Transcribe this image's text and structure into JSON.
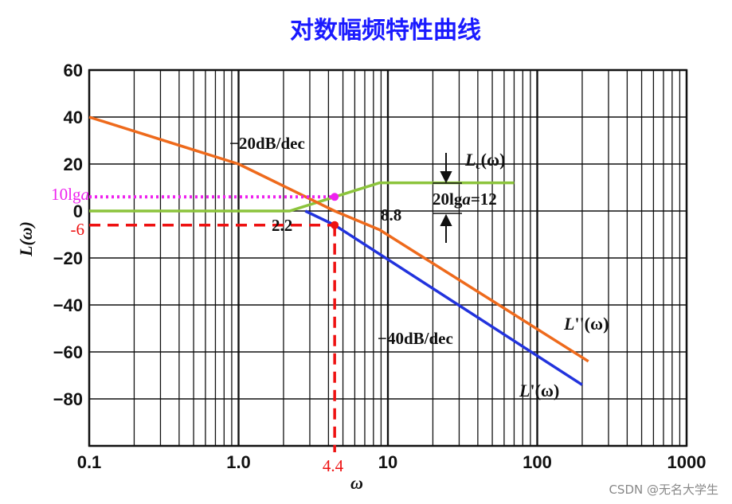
{
  "title": "对数幅频特性曲线",
  "watermark": "CSDN @无名大学生",
  "colors": {
    "title": "#1a1aff",
    "grid": "#111111",
    "L_double_prime": "#ee6a1c",
    "L_prime": "#2233dd",
    "Lc": "#8cc43c",
    "magenta_marker": "#ee22ee",
    "red_marker": "#ee1111"
  },
  "chart_data": {
    "type": "line",
    "title": "对数幅频特性曲线",
    "xlabel": "ω",
    "ylabel": "L(ω)",
    "xscale": "log",
    "xlim": [
      0.1,
      1000
    ],
    "ylim": [
      -100,
      60
    ],
    "grid": true,
    "xticks": [
      {
        "value": 0.1,
        "label": "0.1"
      },
      {
        "value": 1,
        "label": "1.0"
      },
      {
        "value": 10,
        "label": "10"
      },
      {
        "value": 100,
        "label": "100"
      },
      {
        "value": 1000,
        "label": "1000"
      }
    ],
    "yticks": [
      {
        "value": 60,
        "label": "60"
      },
      {
        "value": 40,
        "label": "40"
      },
      {
        "value": 20,
        "label": "20"
      },
      {
        "value": 0,
        "label": "0"
      },
      {
        "value": -20,
        "label": "−20"
      },
      {
        "value": -40,
        "label": "−40"
      },
      {
        "value": -60,
        "label": "−60"
      },
      {
        "value": -80,
        "label": "−80"
      }
    ],
    "series": [
      {
        "name": "L''(ω)",
        "label_parts": [
          "L",
          "''(ω)"
        ],
        "color": "#ee6a1c",
        "points": [
          [
            0.1,
            40
          ],
          [
            1.0,
            20
          ],
          [
            4.4,
            0
          ],
          [
            8.8,
            -8
          ],
          [
            220,
            -64
          ]
        ]
      },
      {
        "name": "L'(ω)",
        "label_parts": [
          "L",
          "'(ω)"
        ],
        "color": "#2233dd",
        "points": [
          [
            2.8,
            0
          ],
          [
            4.4,
            -6
          ],
          [
            200,
            -74
          ]
        ]
      },
      {
        "name": "Lc(ω)",
        "label_parts": [
          "L",
          "c",
          "(ω)"
        ],
        "color": "#8cc43c",
        "points": [
          [
            0.1,
            0
          ],
          [
            2.2,
            0
          ],
          [
            4.4,
            6
          ],
          [
            8.8,
            12
          ],
          [
            70,
            12
          ]
        ]
      }
    ],
    "annotations": {
      "slope1": "−20dB/dec",
      "slope2": "−40dB/dec",
      "corner1": "2.2",
      "corner2": "8.8",
      "gain_label_main": "20lg",
      "gain_label_var": "a",
      "gain_label_value": "=12",
      "mag_label_main": "10lg",
      "mag_label_var": "a",
      "red_y_label": "-6",
      "red_x_label": "4.4"
    },
    "markers": [
      {
        "name": "magenta-marker",
        "x": 4.4,
        "y": 6,
        "color": "#ee22ee"
      },
      {
        "name": "red-marker",
        "x": 4.4,
        "y": -6,
        "color": "#ee1111"
      }
    ]
  }
}
